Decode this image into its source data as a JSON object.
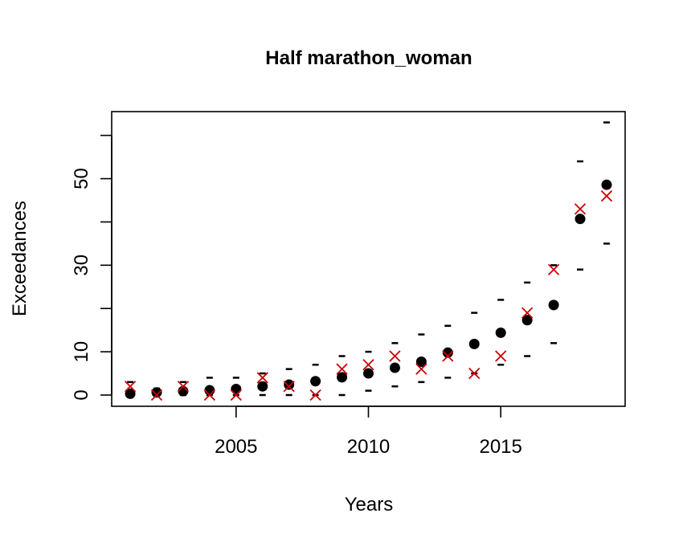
{
  "chart_data": {
    "type": "scatter",
    "title": "Half marathon_woman",
    "xlabel": "Years",
    "ylabel": "Exceedances",
    "xlim": [
      2000.3,
      2019.7
    ],
    "ylim": [
      -2.6,
      65.5
    ],
    "x_ticks": [
      2005,
      2010,
      2015
    ],
    "x_tick_labels": [
      "2005",
      "2010",
      "2015"
    ],
    "y_ticks": [
      0,
      10,
      20,
      30,
      40,
      50,
      60
    ],
    "y_tick_labels": [
      "0",
      "10",
      "",
      "30",
      "",
      "50",
      ""
    ],
    "grid": false,
    "legend": "none",
    "colors": {
      "observed": "#cc0000",
      "fitted": "#000000",
      "bounds": "#000000"
    },
    "x": [
      2001,
      2002,
      2003,
      2004,
      2005,
      2006,
      2007,
      2008,
      2009,
      2010,
      2011,
      2012,
      2013,
      2014,
      2015,
      2016,
      2017,
      2018,
      2019
    ],
    "series": [
      {
        "marker": "x",
        "values": [
          2,
          0,
          2,
          0,
          0,
          4,
          2,
          0,
          6,
          7,
          9,
          6,
          9,
          5,
          9,
          19,
          29,
          43,
          46
        ]
      },
      {
        "marker": "filled-circle",
        "values": [
          0.3,
          0.6,
          0.9,
          1.1,
          1.4,
          2.0,
          2.4,
          3.2,
          4.1,
          5.0,
          6.3,
          7.7,
          9.8,
          11.8,
          14.4,
          17.3,
          20.8,
          40.7,
          48.6
        ]
      },
      {
        "marker": "dash",
        "values": [
          3,
          1.5,
          3,
          4,
          4,
          5,
          6,
          7,
          9,
          10,
          12,
          14,
          16,
          19,
          22,
          26,
          30,
          54,
          63
        ]
      },
      {
        "marker": "dash",
        "values": [
          0,
          0,
          0,
          0,
          0,
          0,
          0,
          0,
          0,
          1,
          2,
          3,
          4,
          5,
          7,
          9,
          12,
          29,
          35
        ]
      }
    ]
  }
}
